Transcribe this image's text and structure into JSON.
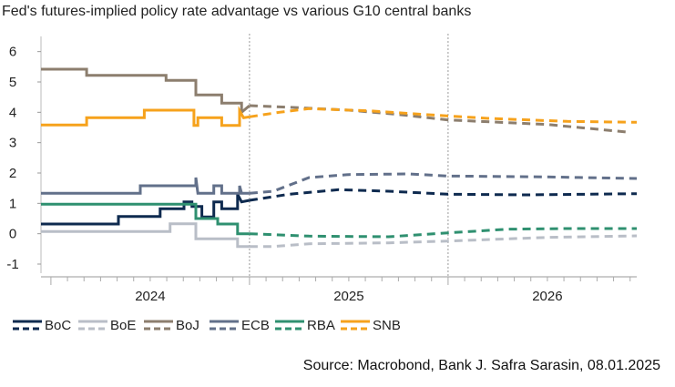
{
  "chart_data": {
    "type": "line",
    "title": "Fed's futures-implied policy rate advantage vs various G10 central banks",
    "source": "Source: Macrobond, Bank J. Safra Sarasin, 08.01.2025",
    "ylim": [
      -1.3,
      6.5
    ],
    "yticks": [
      "6",
      "5",
      "4",
      "3",
      "2",
      "1",
      "0",
      "-1"
    ],
    "xlim": [
      2023.95,
      2026.95
    ],
    "xticks": [
      "2024",
      "2025",
      "2026"
    ],
    "split_date": 2025.0,
    "grid": false,
    "legend_position": "bottom",
    "colors": {
      "BoC": "#0e2a4f",
      "BoE": "#b9bec7",
      "BoJ": "#8c7e6e",
      "ECB": "#62708a",
      "RBA": "#2f9070",
      "SNB": "#f6a21c"
    },
    "series": [
      {
        "name": "BoC",
        "historical": [
          [
            2023.95,
            0.32
          ],
          [
            2024.34,
            0.32
          ],
          [
            2024.34,
            0.57
          ],
          [
            2024.55,
            0.57
          ],
          [
            2024.55,
            0.82
          ],
          [
            2024.67,
            0.82
          ],
          [
            2024.67,
            1.05
          ],
          [
            2024.71,
            1.05
          ],
          [
            2024.71,
            0.9
          ],
          [
            2024.76,
            0.9
          ],
          [
            2024.76,
            0.55
          ],
          [
            2024.82,
            0.55
          ],
          [
            2024.82,
            1.05
          ],
          [
            2024.86,
            1.05
          ],
          [
            2024.86,
            0.82
          ],
          [
            2024.94,
            0.82
          ],
          [
            2024.94,
            1.3
          ],
          [
            2024.96,
            1.05
          ],
          [
            2025.0,
            1.1
          ]
        ],
        "forecast": [
          [
            2025.0,
            1.1
          ],
          [
            2025.2,
            1.3
          ],
          [
            2025.45,
            1.45
          ],
          [
            2025.7,
            1.4
          ],
          [
            2026.0,
            1.3
          ],
          [
            2026.4,
            1.28
          ],
          [
            2026.95,
            1.32
          ]
        ]
      },
      {
        "name": "BoE",
        "historical": [
          [
            2023.95,
            0.07
          ],
          [
            2024.6,
            0.07
          ],
          [
            2024.6,
            0.33
          ],
          [
            2024.73,
            0.33
          ],
          [
            2024.73,
            -0.17
          ],
          [
            2024.94,
            -0.17
          ],
          [
            2024.94,
            -0.42
          ],
          [
            2025.0,
            -0.42
          ]
        ],
        "forecast": [
          [
            2025.0,
            -0.42
          ],
          [
            2025.12,
            -0.42
          ],
          [
            2025.3,
            -0.33
          ],
          [
            2025.7,
            -0.3
          ],
          [
            2026.0,
            -0.24
          ],
          [
            2026.5,
            -0.12
          ],
          [
            2026.95,
            -0.07
          ]
        ]
      },
      {
        "name": "BoJ",
        "historical": [
          [
            2023.95,
            5.42
          ],
          [
            2024.18,
            5.42
          ],
          [
            2024.18,
            5.22
          ],
          [
            2024.58,
            5.22
          ],
          [
            2024.58,
            5.05
          ],
          [
            2024.73,
            5.05
          ],
          [
            2024.73,
            4.57
          ],
          [
            2024.86,
            4.57
          ],
          [
            2024.86,
            4.3
          ],
          [
            2024.96,
            4.3
          ],
          [
            2024.96,
            4.0
          ],
          [
            2025.0,
            4.22
          ]
        ],
        "forecast": [
          [
            2025.0,
            4.22
          ],
          [
            2025.25,
            4.15
          ],
          [
            2025.5,
            4.07
          ],
          [
            2025.75,
            3.93
          ],
          [
            2026.0,
            3.75
          ],
          [
            2026.5,
            3.6
          ],
          [
            2026.9,
            3.35
          ]
        ]
      },
      {
        "name": "ECB",
        "historical": [
          [
            2023.95,
            1.33
          ],
          [
            2024.45,
            1.33
          ],
          [
            2024.45,
            1.58
          ],
          [
            2024.73,
            1.58
          ],
          [
            2024.73,
            1.85
          ],
          [
            2024.74,
            1.33
          ],
          [
            2024.82,
            1.33
          ],
          [
            2024.82,
            1.58
          ],
          [
            2024.86,
            1.58
          ],
          [
            2024.86,
            1.33
          ],
          [
            2024.95,
            1.33
          ],
          [
            2024.95,
            1.58
          ],
          [
            2024.96,
            1.33
          ],
          [
            2025.0,
            1.33
          ]
        ],
        "forecast": [
          [
            2025.0,
            1.33
          ],
          [
            2025.12,
            1.4
          ],
          [
            2025.3,
            1.85
          ],
          [
            2025.5,
            1.95
          ],
          [
            2025.8,
            1.97
          ],
          [
            2026.0,
            1.9
          ],
          [
            2026.5,
            1.87
          ],
          [
            2026.95,
            1.82
          ]
        ]
      },
      {
        "name": "RBA",
        "historical": [
          [
            2023.95,
            0.97
          ],
          [
            2024.73,
            0.97
          ],
          [
            2024.73,
            0.5
          ],
          [
            2024.84,
            0.5
          ],
          [
            2024.84,
            0.32
          ],
          [
            2024.94,
            0.32
          ],
          [
            2024.94,
            0.0
          ],
          [
            2025.0,
            0.0
          ]
        ],
        "forecast": [
          [
            2025.0,
            0.0
          ],
          [
            2025.3,
            -0.08
          ],
          [
            2025.7,
            -0.1
          ],
          [
            2026.0,
            0.03
          ],
          [
            2026.3,
            0.15
          ],
          [
            2026.6,
            0.17
          ],
          [
            2026.95,
            0.17
          ]
        ]
      },
      {
        "name": "SNB",
        "historical": [
          [
            2023.95,
            3.58
          ],
          [
            2024.18,
            3.58
          ],
          [
            2024.18,
            3.82
          ],
          [
            2024.47,
            3.82
          ],
          [
            2024.47,
            4.07
          ],
          [
            2024.72,
            4.07
          ],
          [
            2024.72,
            3.57
          ],
          [
            2024.74,
            3.57
          ],
          [
            2024.74,
            3.82
          ],
          [
            2024.86,
            3.82
          ],
          [
            2024.86,
            3.57
          ],
          [
            2024.95,
            3.57
          ],
          [
            2024.95,
            4.05
          ],
          [
            2024.97,
            3.82
          ],
          [
            2025.0,
            3.85
          ]
        ],
        "forecast": [
          [
            2025.0,
            3.85
          ],
          [
            2025.15,
            4.0
          ],
          [
            2025.3,
            4.12
          ],
          [
            2025.6,
            4.05
          ],
          [
            2025.9,
            3.92
          ],
          [
            2026.2,
            3.8
          ],
          [
            2026.6,
            3.7
          ],
          [
            2026.95,
            3.67
          ]
        ]
      }
    ]
  }
}
